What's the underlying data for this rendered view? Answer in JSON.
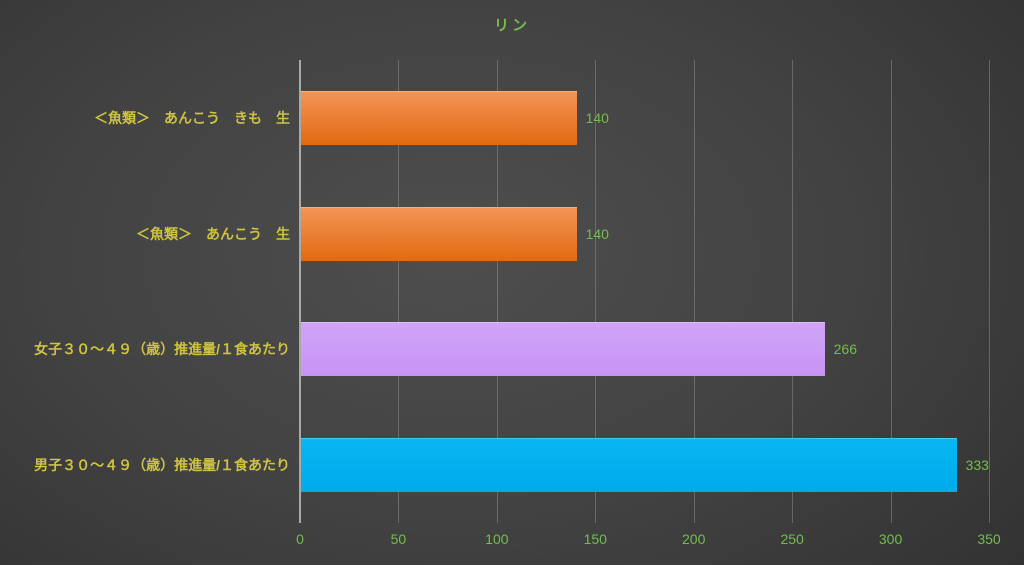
{
  "chart_data": {
    "type": "bar",
    "orientation": "horizontal",
    "title": "リン",
    "categories": [
      "＜魚類＞　あんこう　きも　生",
      "＜魚類＞　あんこう　生",
      "女子３０～４９（歳）推進量/１食あたり",
      "男子３０～４９（歳）推進量/１食あたり"
    ],
    "values": [
      140,
      140,
      266,
      333
    ],
    "bar_colors": [
      {
        "top": "#F39557",
        "bottom": "#E26A10"
      },
      {
        "top": "#F39557",
        "bottom": "#E26A10"
      },
      {
        "top": "#D0A4F9",
        "bottom": "#C794F3"
      },
      {
        "top": "#0AB5F3",
        "bottom": "#00ABEC"
      }
    ],
    "xlim": [
      0,
      350
    ],
    "x_ticks": [
      0,
      50,
      100,
      150,
      200,
      250,
      300,
      350
    ],
    "grid": true,
    "legend": false,
    "data_labels": true
  },
  "colors": {
    "background_center": "#4E4E4E",
    "background_mid": "#424242",
    "background_edge": "#242424",
    "title": "#74BD4C",
    "category_label": "#CDC340",
    "value_label": "#74BD4C",
    "axis_tick": "#74BD4C",
    "axis_line": "#A9A9A9",
    "gridline": "#8A8A8A"
  }
}
